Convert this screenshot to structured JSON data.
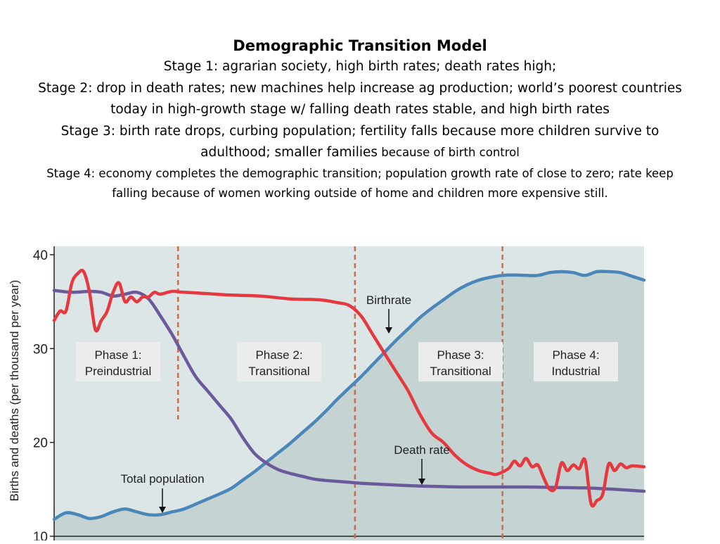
{
  "slide": {
    "title": "Demographic Transition Model",
    "stage1": "Stage 1: agrarian society, high birth rates; death rates high;",
    "stage2": "Stage 2: drop in death rates; new machines help increase ag production; world’s poorest countries today in high-growth stage w/ falling death rates stable, and high birth rates",
    "stage3_main": "Stage 3:  birth rate drops, curbing population; fertility falls because more children survive to adulthood; smaller families",
    "stage3_aside": " because of birth control",
    "stage4": "Stage 4:  economy completes the demographic transition; population growth rate of close to zero; rate keep falling because of women working outside of home and children more expensive still."
  },
  "colors": {
    "background_plot": "#dde6e6",
    "population_fill": "#c5d3d3",
    "birthrate": "#e43a3f",
    "deathrate": "#6a5a9c",
    "population": "#4a86b8",
    "phase_divider": "#c0704a"
  },
  "chart_data": {
    "type": "line",
    "title": "",
    "xlabel": "",
    "ylabel": "Births and deaths (per thousand per year)",
    "ylim": [
      10,
      40
    ],
    "yticks": [
      10,
      20,
      30,
      40
    ],
    "x_range": [
      0,
      100
    ],
    "phase_boundaries": [
      21,
      51,
      76
    ],
    "phases": [
      {
        "line1": "Phase 1:",
        "line2": "Preindustrial"
      },
      {
        "line1": "Phase 2:",
        "line2": "Transitional"
      },
      {
        "line1": "Phase 3:",
        "line2": "Transitional"
      },
      {
        "line1": "Phase 4:",
        "line2": "Industrial"
      }
    ],
    "annotations": {
      "birthrate": "Birthrate",
      "death_rate": "Death rate",
      "total_population": "Total population"
    },
    "series": [
      {
        "name": "Birthrate",
        "x": [
          0,
          1,
          2,
          3,
          4,
          5,
          6,
          7,
          8,
          9,
          10,
          11,
          12,
          13,
          14,
          15,
          16,
          17,
          18,
          20,
          22,
          25,
          30,
          35,
          40,
          45,
          48,
          50,
          52,
          54,
          56,
          58,
          60,
          62,
          64,
          66,
          68,
          70,
          72,
          74,
          75,
          77,
          78,
          79,
          80,
          81,
          82,
          83,
          84,
          85,
          86,
          87,
          88,
          89,
          90,
          91,
          92,
          93,
          94,
          95,
          96,
          97,
          98,
          100
        ],
        "values": [
          33,
          34,
          34,
          37,
          38,
          38.2,
          36,
          32,
          33,
          34,
          36,
          37,
          35,
          35.5,
          35,
          35.5,
          35.5,
          36,
          35.8,
          36.1,
          36,
          35.9,
          35.7,
          35.6,
          35.3,
          35.2,
          34.9,
          34.6,
          33.5,
          31.5,
          29.5,
          27.5,
          25.5,
          23,
          21,
          20,
          18.6,
          17.6,
          17,
          16.7,
          16.6,
          17.2,
          18,
          17.5,
          18.3,
          17.4,
          17.6,
          16.2,
          15,
          15.2,
          17.8,
          17,
          17.6,
          17.2,
          18.1,
          13.5,
          13.8,
          14.5,
          17.7,
          17,
          17.7,
          17.3,
          17.5,
          17.4
        ]
      },
      {
        "name": "Death rate",
        "x": [
          0,
          3,
          6,
          8,
          10,
          12,
          14,
          16,
          18,
          20,
          22,
          24,
          26,
          28,
          30,
          32,
          34,
          36,
          38,
          40,
          42,
          44,
          46,
          48,
          50,
          52,
          55,
          60,
          65,
          70,
          75,
          80,
          85,
          90,
          95,
          100
        ],
        "values": [
          36.2,
          36,
          36.1,
          36,
          35.6,
          35.8,
          36,
          35.3,
          33.5,
          31.5,
          29.2,
          27,
          25.5,
          24,
          22.5,
          20.5,
          18.8,
          17.8,
          17.1,
          16.7,
          16.4,
          16.1,
          15.95,
          15.85,
          15.75,
          15.65,
          15.55,
          15.4,
          15.3,
          15.25,
          15.25,
          15.25,
          15.2,
          15.15,
          15,
          14.8
        ]
      },
      {
        "name": "Total population",
        "x": [
          0,
          2,
          4,
          6,
          8,
          10,
          12,
          14,
          16,
          18,
          20,
          22,
          25,
          28,
          30,
          32,
          34,
          36,
          38,
          40,
          42,
          44,
          46,
          48,
          50,
          52,
          54,
          56,
          58,
          60,
          62,
          64,
          66,
          68,
          70,
          72,
          74,
          76,
          78,
          80,
          82,
          84,
          86,
          88,
          90,
          92,
          94,
          96,
          98,
          100
        ],
        "values": [
          11.8,
          12.5,
          12.3,
          11.9,
          12.1,
          12.6,
          12.9,
          12.6,
          12.3,
          12.3,
          12.6,
          12.9,
          13.7,
          14.5,
          15.1,
          16,
          16.9,
          17.9,
          18.9,
          19.9,
          21,
          22.1,
          23.3,
          24.6,
          25.8,
          27,
          28.3,
          29.6,
          30.9,
          32.1,
          33.3,
          34.3,
          35.2,
          36.1,
          36.8,
          37.3,
          37.6,
          37.8,
          37.85,
          37.8,
          37.8,
          38.1,
          38.2,
          38.1,
          37.8,
          38.2,
          38.2,
          38.1,
          37.7,
          37.3
        ]
      }
    ]
  }
}
